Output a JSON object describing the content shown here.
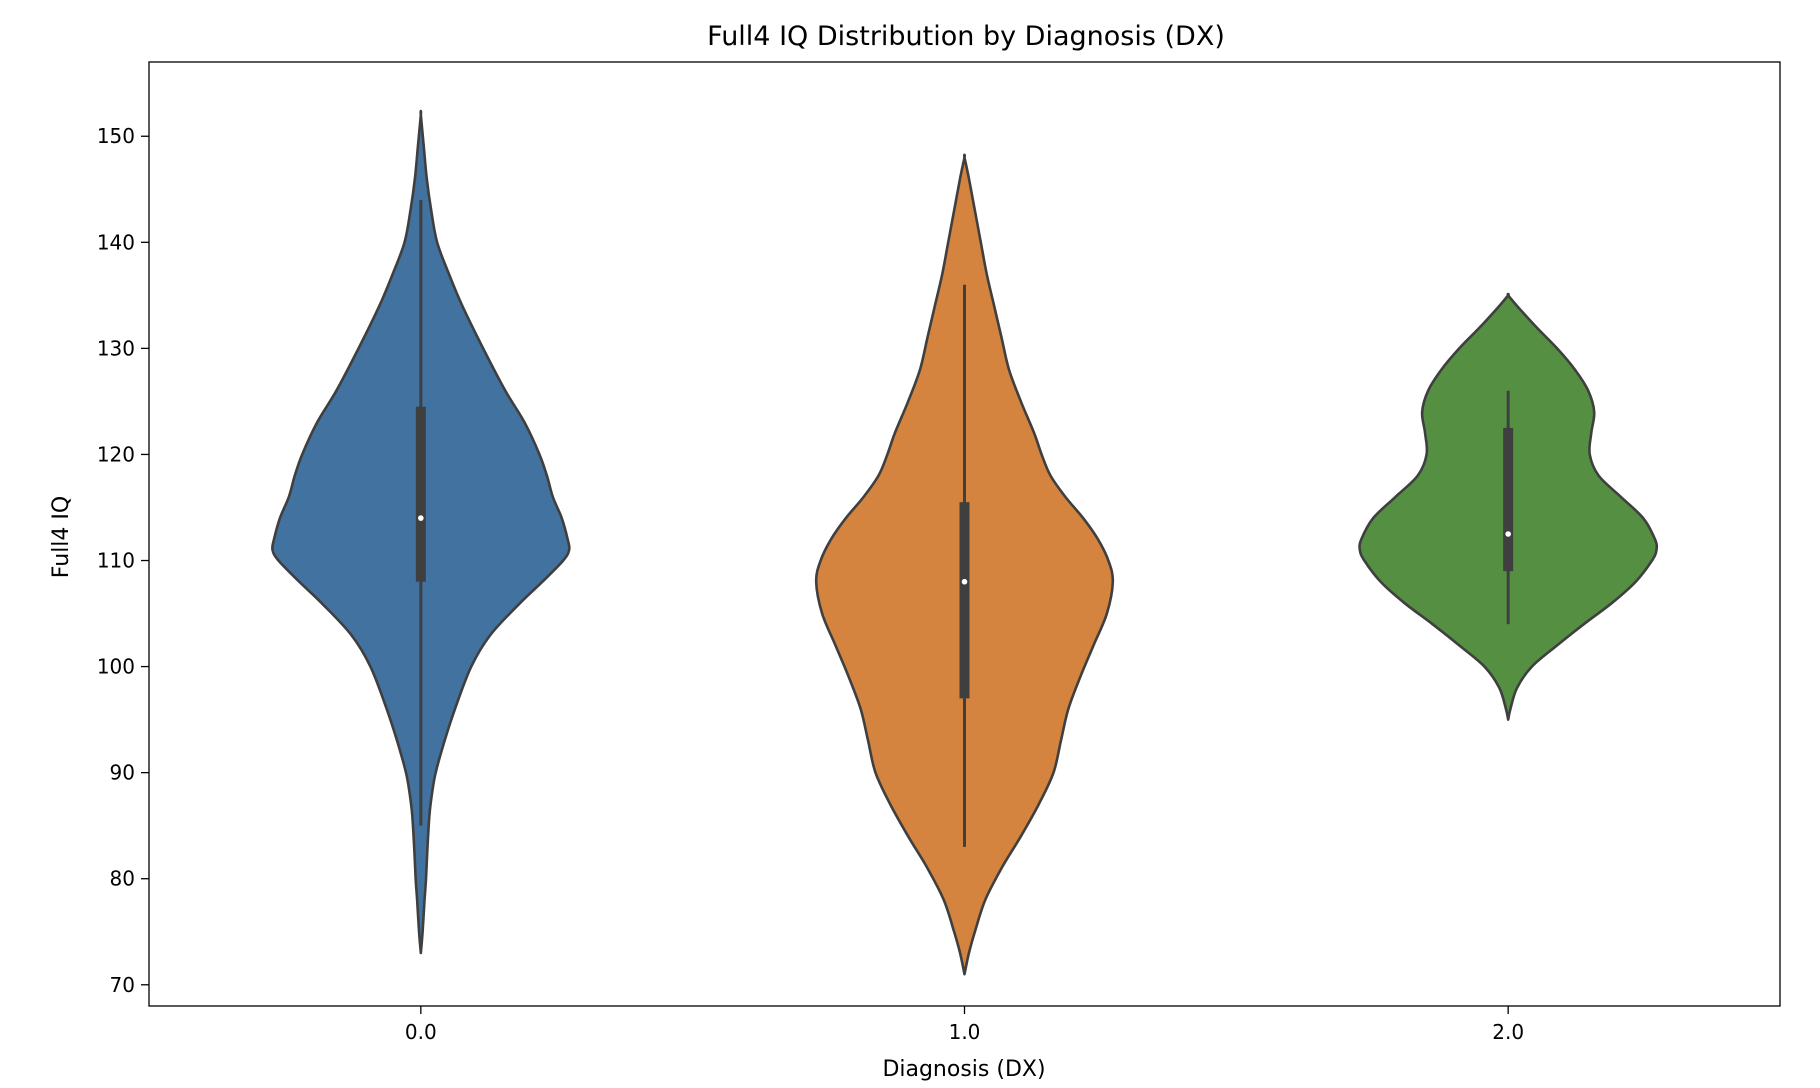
{
  "chart_data": {
    "type": "violin",
    "title": "Full4 IQ Distribution by Diagnosis (DX)",
    "xlabel": "Diagnosis (DX)",
    "ylabel": "Full4 IQ",
    "categories": [
      "0.0",
      "1.0",
      "2.0"
    ],
    "xlim": [
      -0.5,
      2.5
    ],
    "ylim": [
      68,
      157
    ],
    "yticks": [
      70,
      80,
      90,
      100,
      110,
      120,
      130,
      140,
      150
    ],
    "ytick_labels": [
      "70",
      "80",
      "90",
      "100",
      "110",
      "120",
      "130",
      "140",
      "150"
    ],
    "grid": false,
    "legend": "none",
    "series": [
      {
        "category": "0.0",
        "color": "#4273a0",
        "box": {
          "whisker_low": 85,
          "q1": 108,
          "median": 114,
          "q3": 124.5,
          "whisker_high": 144
        },
        "density": [
          [
            73,
            0.0
          ],
          [
            75,
            0.012
          ],
          [
            78,
            0.025
          ],
          [
            80,
            0.035
          ],
          [
            83,
            0.045
          ],
          [
            86,
            0.058
          ],
          [
            88,
            0.075
          ],
          [
            90,
            0.1
          ],
          [
            93,
            0.16
          ],
          [
            96,
            0.23
          ],
          [
            100,
            0.34
          ],
          [
            103,
            0.47
          ],
          [
            106,
            0.67
          ],
          [
            108,
            0.82
          ],
          [
            110,
            0.96
          ],
          [
            111,
            1.0
          ],
          [
            112,
            0.99
          ],
          [
            114,
            0.95
          ],
          [
            116,
            0.89
          ],
          [
            118,
            0.85
          ],
          [
            120,
            0.8
          ],
          [
            123,
            0.7
          ],
          [
            126,
            0.57
          ],
          [
            130,
            0.42
          ],
          [
            134,
            0.28
          ],
          [
            137,
            0.19
          ],
          [
            140,
            0.11
          ],
          [
            143,
            0.07
          ],
          [
            146,
            0.04
          ],
          [
            149,
            0.02
          ],
          [
            152,
            0.0
          ]
        ]
      },
      {
        "category": "1.0",
        "color": "#d4843f",
        "box": {
          "whisker_low": 83,
          "q1": 97,
          "median": 108,
          "q3": 115.5,
          "whisker_high": 136
        },
        "density": [
          [
            71,
            0.0
          ],
          [
            73,
            0.03
          ],
          [
            75,
            0.07
          ],
          [
            78,
            0.14
          ],
          [
            81,
            0.25
          ],
          [
            84,
            0.38
          ],
          [
            87,
            0.5
          ],
          [
            90,
            0.6
          ],
          [
            93,
            0.65
          ],
          [
            96,
            0.7
          ],
          [
            99,
            0.78
          ],
          [
            102,
            0.87
          ],
          [
            105,
            0.96
          ],
          [
            108,
            1.0
          ],
          [
            110,
            0.97
          ],
          [
            112,
            0.9
          ],
          [
            114,
            0.8
          ],
          [
            116,
            0.68
          ],
          [
            118,
            0.58
          ],
          [
            120,
            0.52
          ],
          [
            122,
            0.47
          ],
          [
            125,
            0.38
          ],
          [
            128,
            0.3
          ],
          [
            131,
            0.25
          ],
          [
            134,
            0.2
          ],
          [
            137,
            0.15
          ],
          [
            140,
            0.11
          ],
          [
            143,
            0.07
          ],
          [
            146,
            0.03
          ],
          [
            148,
            0.0
          ]
        ]
      },
      {
        "category": "2.0",
        "color": "#548f42",
        "box": {
          "whisker_low": 104,
          "q1": 109,
          "median": 112.5,
          "q3": 122.5,
          "whisker_high": 126
        },
        "density": [
          [
            95,
            0.0
          ],
          [
            96,
            0.015
          ],
          [
            98,
            0.06
          ],
          [
            100,
            0.16
          ],
          [
            102,
            0.33
          ],
          [
            104,
            0.51
          ],
          [
            106,
            0.7
          ],
          [
            108,
            0.86
          ],
          [
            110,
            0.97
          ],
          [
            111,
            1.0
          ],
          [
            112,
            0.99
          ],
          [
            114,
            0.91
          ],
          [
            116,
            0.76
          ],
          [
            118,
            0.61
          ],
          [
            120,
            0.55
          ],
          [
            122,
            0.56
          ],
          [
            124,
            0.58
          ],
          [
            126,
            0.54
          ],
          [
            128,
            0.45
          ],
          [
            130,
            0.33
          ],
          [
            132,
            0.19
          ],
          [
            134,
            0.06
          ],
          [
            135,
            0.0
          ]
        ]
      }
    ]
  }
}
